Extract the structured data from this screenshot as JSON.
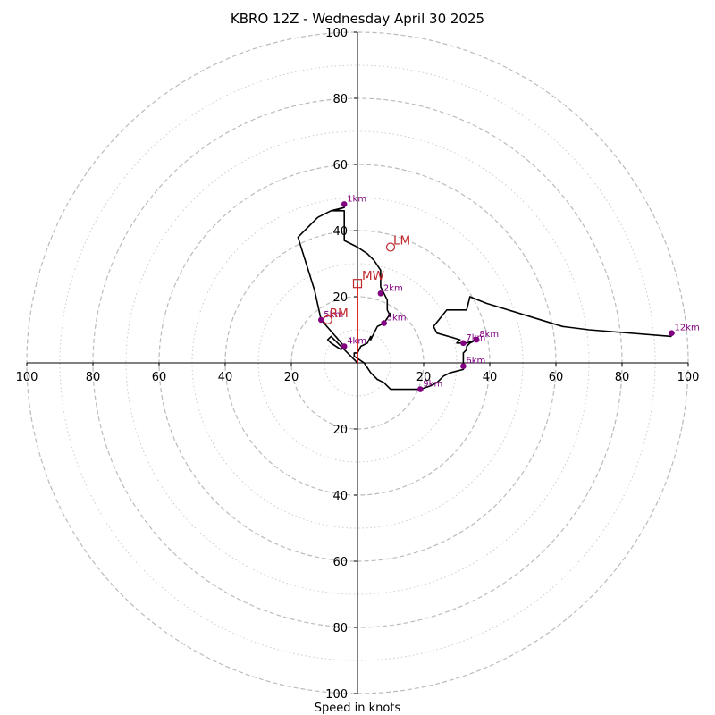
{
  "chart_data": {
    "type": "hodograph",
    "title": "KBRO 12Z - Wednesday April 30 2025",
    "xlabel": "Speed in knots",
    "range": [
      -100,
      100
    ],
    "ring_major": [
      20,
      40,
      60,
      80,
      100
    ],
    "ring_minor": [
      10,
      30,
      50,
      70,
      90
    ],
    "x_ticks": [
      "100",
      "80",
      "60",
      "40",
      "20",
      "20",
      "40",
      "60",
      "80",
      "100"
    ],
    "y_ticks": [
      "100",
      "80",
      "60",
      "40",
      "20",
      "20",
      "40",
      "60",
      "80",
      "100"
    ],
    "hodograph_trace": [
      [
        0,
        0
      ],
      [
        -4,
        4
      ],
      [
        -8,
        8
      ],
      [
        -9,
        7
      ],
      [
        -8,
        6
      ],
      [
        -5,
        4
      ],
      [
        -4,
        5
      ],
      [
        -11,
        13
      ],
      [
        -13,
        22
      ],
      [
        -18,
        38
      ],
      [
        -12,
        44
      ],
      [
        -8,
        46
      ],
      [
        -4,
        47
      ],
      [
        -7,
        46
      ],
      [
        -8,
        46
      ],
      [
        -4,
        46
      ],
      [
        -4,
        44
      ],
      [
        -4,
        40
      ],
      [
        -4,
        37
      ],
      [
        0,
        35
      ],
      [
        3,
        33
      ],
      [
        5,
        31
      ],
      [
        7,
        28
      ],
      [
        7,
        25
      ],
      [
        7,
        23
      ],
      [
        8,
        21
      ],
      [
        9,
        19
      ],
      [
        9,
        16
      ],
      [
        10,
        14
      ],
      [
        10,
        15
      ],
      [
        8,
        12
      ],
      [
        6,
        11
      ],
      [
        5,
        9
      ],
      [
        4,
        7
      ],
      [
        4,
        8
      ],
      [
        3,
        6
      ],
      [
        1,
        5
      ],
      [
        0,
        3
      ],
      [
        -1,
        3
      ],
      [
        -1,
        2
      ],
      [
        2,
        0
      ],
      [
        4,
        -3
      ],
      [
        6,
        -5
      ],
      [
        8,
        -6
      ],
      [
        9,
        -7
      ],
      [
        10,
        -8
      ],
      [
        15,
        -8
      ],
      [
        19,
        -8
      ],
      [
        22,
        -7
      ],
      [
        24,
        -6
      ],
      [
        26,
        -4
      ],
      [
        28,
        -3
      ],
      [
        32,
        -2
      ],
      [
        32,
        1
      ],
      [
        32,
        3
      ],
      [
        33,
        4
      ],
      [
        33,
        5
      ],
      [
        34,
        6
      ],
      [
        36,
        7
      ],
      [
        33,
        6
      ],
      [
        30,
        6
      ],
      [
        31,
        7
      ],
      [
        24,
        9
      ],
      [
        23,
        11
      ],
      [
        27,
        16
      ],
      [
        33,
        16
      ],
      [
        34,
        20
      ],
      [
        39,
        18
      ],
      [
        62,
        11
      ],
      [
        70,
        10
      ],
      [
        95,
        8
      ]
    ],
    "height_markers": [
      {
        "label": "1km",
        "u": -4,
        "v": 48
      },
      {
        "label": "2km",
        "u": 7,
        "v": 21
      },
      {
        "label": "3km",
        "u": 8,
        "v": 12
      },
      {
        "label": "4km",
        "u": -4,
        "v": 5
      },
      {
        "label": "5km",
        "u": -11,
        "v": 13
      },
      {
        "label": "6km",
        "u": 32,
        "v": -1
      },
      {
        "label": "7km",
        "u": 32,
        "v": 6
      },
      {
        "label": "8km",
        "u": 36,
        "v": 7
      },
      {
        "label": "9km",
        "u": 19,
        "v": -8
      },
      {
        "label": "12km",
        "u": 95,
        "v": 9
      }
    ],
    "storm_motion": {
      "RM": {
        "label": "RM",
        "u": -9,
        "v": 13
      },
      "LM": {
        "label": "LM",
        "u": 10,
        "v": 35
      },
      "MW": {
        "label": "MW",
        "u": 0,
        "v": 24
      }
    },
    "shear_vector": {
      "from": [
        0,
        0
      ],
      "to": [
        0,
        24
      ]
    },
    "colors": {
      "trace": "#000000",
      "markers": "#800080",
      "storm": "#c0282d",
      "shear": "#d61414",
      "rings": "#bbbbbb"
    }
  }
}
